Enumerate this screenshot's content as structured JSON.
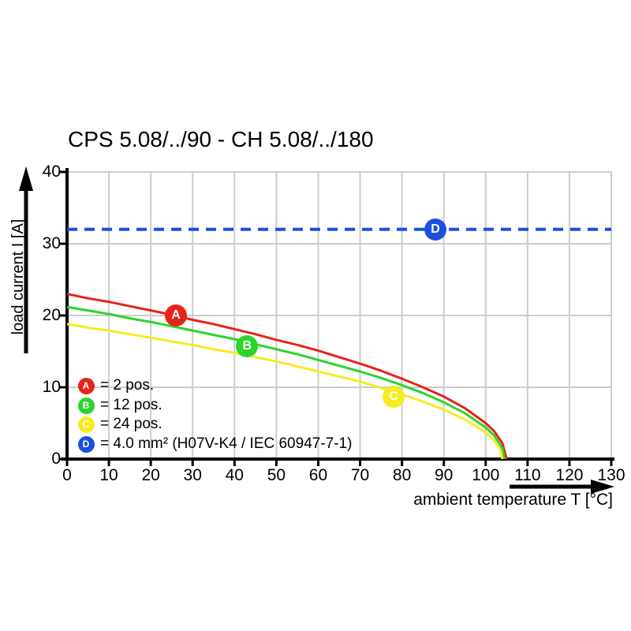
{
  "title": "CPS 5.08/../90 - CH 5.08/../180",
  "chart_data": {
    "type": "line",
    "title": "CPS 5.08/../90 - CH 5.08/../180",
    "xlabel": "ambient temperature T [°C]",
    "ylabel": "load current I [A]",
    "xlim": [
      0,
      130
    ],
    "ylim": [
      0,
      40
    ],
    "x_ticks": [
      0,
      10,
      20,
      30,
      40,
      50,
      60,
      70,
      80,
      90,
      100,
      110,
      120,
      130
    ],
    "y_ticks": [
      0,
      10,
      20,
      30,
      40
    ],
    "grid": true,
    "grid_color": "#cccccc",
    "axis_color": "#000000",
    "series": [
      {
        "name": "A",
        "description": "2 pos.",
        "color": "#e8221a",
        "style": "solid",
        "points": [
          [
            0,
            23.0
          ],
          [
            5,
            22.4
          ],
          [
            10,
            21.9
          ],
          [
            15,
            21.3
          ],
          [
            20,
            20.7
          ],
          [
            25,
            20.1
          ],
          [
            30,
            19.4
          ],
          [
            35,
            18.8
          ],
          [
            40,
            18.1
          ],
          [
            45,
            17.4
          ],
          [
            50,
            16.6
          ],
          [
            55,
            15.9
          ],
          [
            60,
            15.1
          ],
          [
            65,
            14.2
          ],
          [
            70,
            13.3
          ],
          [
            75,
            12.3
          ],
          [
            80,
            11.2
          ],
          [
            85,
            10.0
          ],
          [
            90,
            8.7
          ],
          [
            95,
            7.1
          ],
          [
            100,
            5.0
          ],
          [
            102,
            3.9
          ],
          [
            104,
            2.2
          ],
          [
            105,
            0
          ]
        ]
      },
      {
        "name": "B",
        "description": "12 pos.",
        "color": "#2bd52b",
        "style": "solid",
        "points": [
          [
            0,
            21.2
          ],
          [
            5,
            20.7
          ],
          [
            10,
            20.2
          ],
          [
            15,
            19.6
          ],
          [
            20,
            19.1
          ],
          [
            25,
            18.5
          ],
          [
            30,
            17.9
          ],
          [
            35,
            17.3
          ],
          [
            40,
            16.7
          ],
          [
            45,
            16.0
          ],
          [
            50,
            15.3
          ],
          [
            55,
            14.6
          ],
          [
            60,
            13.8
          ],
          [
            65,
            13.0
          ],
          [
            70,
            12.2
          ],
          [
            75,
            11.3
          ],
          [
            80,
            10.3
          ],
          [
            85,
            9.2
          ],
          [
            90,
            7.9
          ],
          [
            95,
            6.4
          ],
          [
            100,
            4.4
          ],
          [
            102,
            3.3
          ],
          [
            104,
            1.5
          ],
          [
            104.5,
            0
          ]
        ]
      },
      {
        "name": "C",
        "description": "24 pos.",
        "color": "#f6ec22",
        "style": "solid",
        "points": [
          [
            0,
            18.8
          ],
          [
            5,
            18.3
          ],
          [
            10,
            17.9
          ],
          [
            15,
            17.4
          ],
          [
            20,
            16.9
          ],
          [
            25,
            16.4
          ],
          [
            30,
            15.9
          ],
          [
            35,
            15.3
          ],
          [
            40,
            14.8
          ],
          [
            45,
            14.2
          ],
          [
            50,
            13.6
          ],
          [
            55,
            12.9
          ],
          [
            60,
            12.2
          ],
          [
            65,
            11.5
          ],
          [
            70,
            10.8
          ],
          [
            75,
            9.9
          ],
          [
            80,
            9.0
          ],
          [
            85,
            8.0
          ],
          [
            90,
            6.9
          ],
          [
            95,
            5.5
          ],
          [
            100,
            3.7
          ],
          [
            102,
            2.6
          ],
          [
            103.5,
            1.3
          ],
          [
            104,
            0
          ]
        ]
      },
      {
        "name": "D",
        "description": "4.0 mm² (H07V-K4 / IEC 60947-7-1)",
        "color": "#1e4fdc",
        "style": "dashed",
        "points": [
          [
            0,
            32
          ],
          [
            130,
            32
          ]
        ]
      }
    ],
    "markers": [
      {
        "label": "A",
        "x": 26,
        "y": 20,
        "color": "#e8221a"
      },
      {
        "label": "B",
        "x": 43,
        "y": 15.7,
        "color": "#2bd52b"
      },
      {
        "label": "C",
        "x": 78,
        "y": 8.7,
        "color": "#f6ec22"
      },
      {
        "label": "D",
        "x": 88,
        "y": 32,
        "color": "#1e4fdc"
      }
    ],
    "legend": [
      {
        "label": "A",
        "text": "= 2 pos.",
        "color": "#e8221a"
      },
      {
        "label": "B",
        "text": "= 12 pos.",
        "color": "#2bd52b"
      },
      {
        "label": "C",
        "text": "= 24 pos.",
        "color": "#f6ec22"
      },
      {
        "label": "D",
        "text": "= 4.0 mm² (H07V-K4 / IEC 60947-7-1)",
        "color": "#1e4fdc"
      }
    ],
    "legend_position": "inside-bottom-left"
  }
}
